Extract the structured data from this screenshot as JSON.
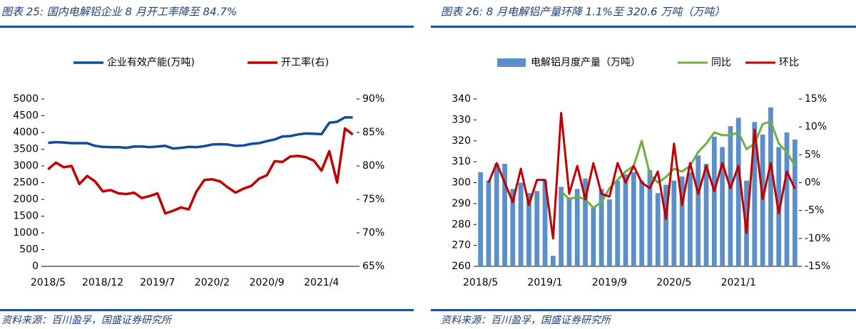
{
  "chart_data": [
    {
      "type": "line",
      "title": "图表 25: 国内电解铝企业 8 月开工率降至 84.7%",
      "source": "资料来源：百川盈孚，国盛证券研究所",
      "categories": [
        "2018/5",
        null,
        null,
        null,
        null,
        null,
        null,
        "2018/12",
        null,
        null,
        null,
        null,
        null,
        null,
        "2019/7",
        null,
        null,
        null,
        null,
        null,
        null,
        "2020/2",
        null,
        null,
        null,
        null,
        null,
        null,
        "2020/9",
        null,
        null,
        null,
        null,
        null,
        null,
        "2021/4",
        null,
        null,
        null,
        null
      ],
      "series": [
        {
          "name": "企业有效产能(万吨)",
          "type": "line",
          "color": "#0f4c9a",
          "values": [
            3690,
            3710,
            3700,
            3680,
            3680,
            3680,
            3600,
            3570,
            3560,
            3560,
            3540,
            3580,
            3580,
            3560,
            3580,
            3600,
            3520,
            3540,
            3570,
            3560,
            3590,
            3640,
            3650,
            3640,
            3600,
            3610,
            3660,
            3680,
            3740,
            3790,
            3880,
            3890,
            3940,
            3970,
            3960,
            3950,
            4290,
            4320,
            4450,
            4450
          ]
        },
        {
          "name": "开工率(右)",
          "type": "line",
          "axis": "y2",
          "color": "#c00000",
          "values": [
            79.5,
            80.5,
            79.8,
            80.0,
            77.3,
            78.5,
            77.7,
            76.2,
            76.4,
            75.9,
            75.8,
            76.0,
            75.2,
            75.5,
            75.9,
            72.9,
            73.3,
            73.8,
            73.5,
            76.2,
            77.9,
            78.0,
            77.7,
            76.8,
            76.0,
            76.6,
            77.0,
            78.1,
            78.6,
            80.7,
            80.6,
            81.4,
            81.5,
            81.3,
            80.8,
            79.3,
            82.2,
            77.5,
            85.6,
            84.7
          ]
        }
      ],
      "ylim": [
        0,
        5000
      ],
      "yticks": [
        0,
        500,
        1000,
        1500,
        2000,
        2500,
        3000,
        3500,
        4000,
        4500,
        5000
      ],
      "y2lim": [
        65,
        90
      ],
      "y2ticks": [
        {
          "value": 65,
          "label": "65%"
        },
        {
          "value": 70,
          "label": "70%"
        },
        {
          "value": 75,
          "label": "75%"
        },
        {
          "value": 80,
          "label": "80%"
        },
        {
          "value": 85,
          "label": "85%"
        },
        {
          "value": 90,
          "label": "90%"
        }
      ]
    },
    {
      "type": "bar",
      "title": "图表 26: 8 月电解铝产量环降 1.1%至 320.6 万吨（万吨）",
      "source": "资料来源：百川盈孚，国盛证券研究所",
      "categories": [
        "2018/5",
        null,
        null,
        null,
        null,
        null,
        null,
        null,
        "2019/1",
        null,
        null,
        null,
        null,
        null,
        null,
        null,
        "2019/9",
        null,
        null,
        null,
        null,
        null,
        null,
        null,
        "2020/5",
        null,
        null,
        null,
        null,
        null,
        null,
        null,
        "2021/1",
        null,
        null,
        null,
        null,
        null,
        null,
        null
      ],
      "series": [
        {
          "name": "电解铝月度产量（万吨）",
          "type": "bar",
          "color": "#5b8fc9",
          "values": [
            305,
            301,
            309,
            309,
            297,
            300,
            295,
            296,
            301,
            265,
            298,
            293,
            297,
            302,
            288,
            297,
            292,
            301,
            304,
            305,
            301,
            306,
            295,
            299,
            301,
            303,
            305,
            313,
            309,
            322,
            317,
            327,
            331,
            301,
            329,
            323,
            336,
            317,
            324,
            320.6
          ]
        },
        {
          "name": "同比",
          "type": "line",
          "axis": "y2",
          "color": "#70ad47",
          "values": [
            null,
            null,
            null,
            null,
            null,
            null,
            null,
            null,
            null,
            null,
            -1.5,
            -3,
            -2.5,
            -3,
            -4.5,
            -3.5,
            -1,
            0.5,
            2,
            3,
            7.5,
            1.5,
            0,
            1,
            2.5,
            2,
            3,
            5.5,
            7,
            9,
            8.5,
            8.5,
            9,
            6,
            7,
            10.5,
            11,
            7,
            5.5,
            3
          ]
        },
        {
          "name": "环比",
          "type": "line",
          "axis": "y2",
          "color": "#c00000",
          "values": [
            null,
            0,
            3.5,
            0,
            -3.5,
            2.5,
            -4,
            0.5,
            0.5,
            -10,
            12.5,
            -2,
            3,
            -3,
            3.5,
            -2,
            -2.5,
            3.5,
            0,
            3,
            0,
            -1,
            2,
            -6.5,
            7,
            -4,
            3.5,
            -2,
            3,
            -1.5,
            3.5,
            -1,
            3,
            -9,
            9.5,
            -3,
            3.5,
            -5.5,
            2,
            -1.1
          ]
        }
      ],
      "ylim": [
        260,
        340
      ],
      "yticks": [
        260,
        270,
        280,
        290,
        300,
        310,
        320,
        330,
        340
      ],
      "y2lim": [
        -15,
        15
      ],
      "y2ticks": [
        {
          "value": -15,
          "label": "-15%"
        },
        {
          "value": -10,
          "label": "-10%"
        },
        {
          "value": -5,
          "label": "-5%"
        },
        {
          "value": 0,
          "label": "0%"
        },
        {
          "value": 5,
          "label": "5%"
        },
        {
          "value": 10,
          "label": "10%"
        },
        {
          "value": 15,
          "label": "15%"
        }
      ]
    }
  ]
}
